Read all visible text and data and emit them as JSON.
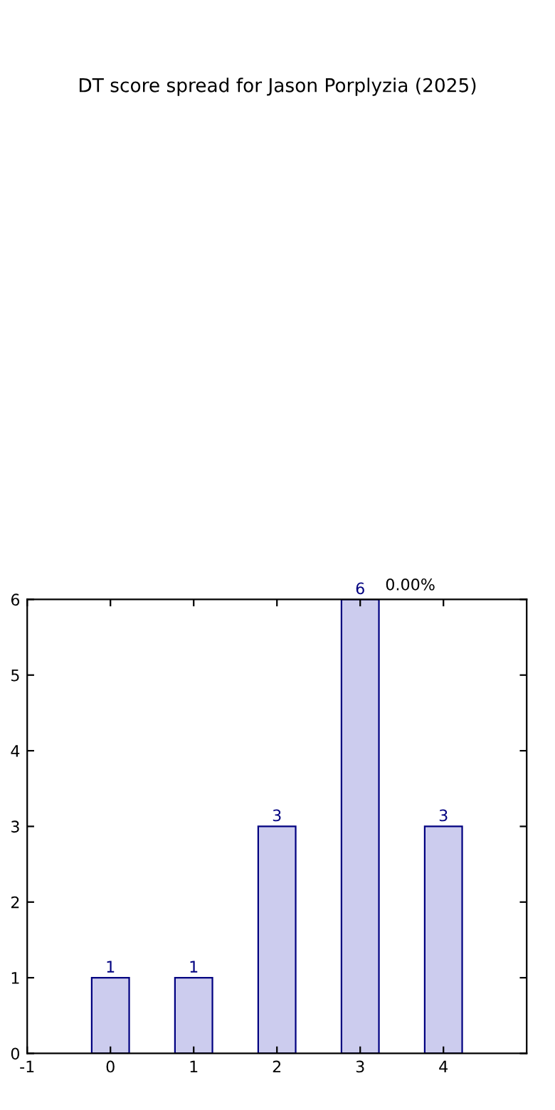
{
  "chart_data": {
    "type": "bar",
    "title": "DT score spread for Jason Porplyzia (2025)",
    "x": [
      0,
      1,
      2,
      3,
      4
    ],
    "values": [
      1,
      1,
      3,
      6,
      3
    ],
    "color": "#ccccee",
    "xlim": [
      -1,
      5
    ],
    "xticks": [
      -1,
      0,
      1,
      2,
      3,
      4
    ],
    "ylim": [
      0,
      6
    ],
    "yticks": [
      0,
      1,
      2,
      3,
      4,
      5,
      6
    ],
    "data_labels": true,
    "grid": false,
    "annotations": [
      "0.00%"
    ]
  }
}
